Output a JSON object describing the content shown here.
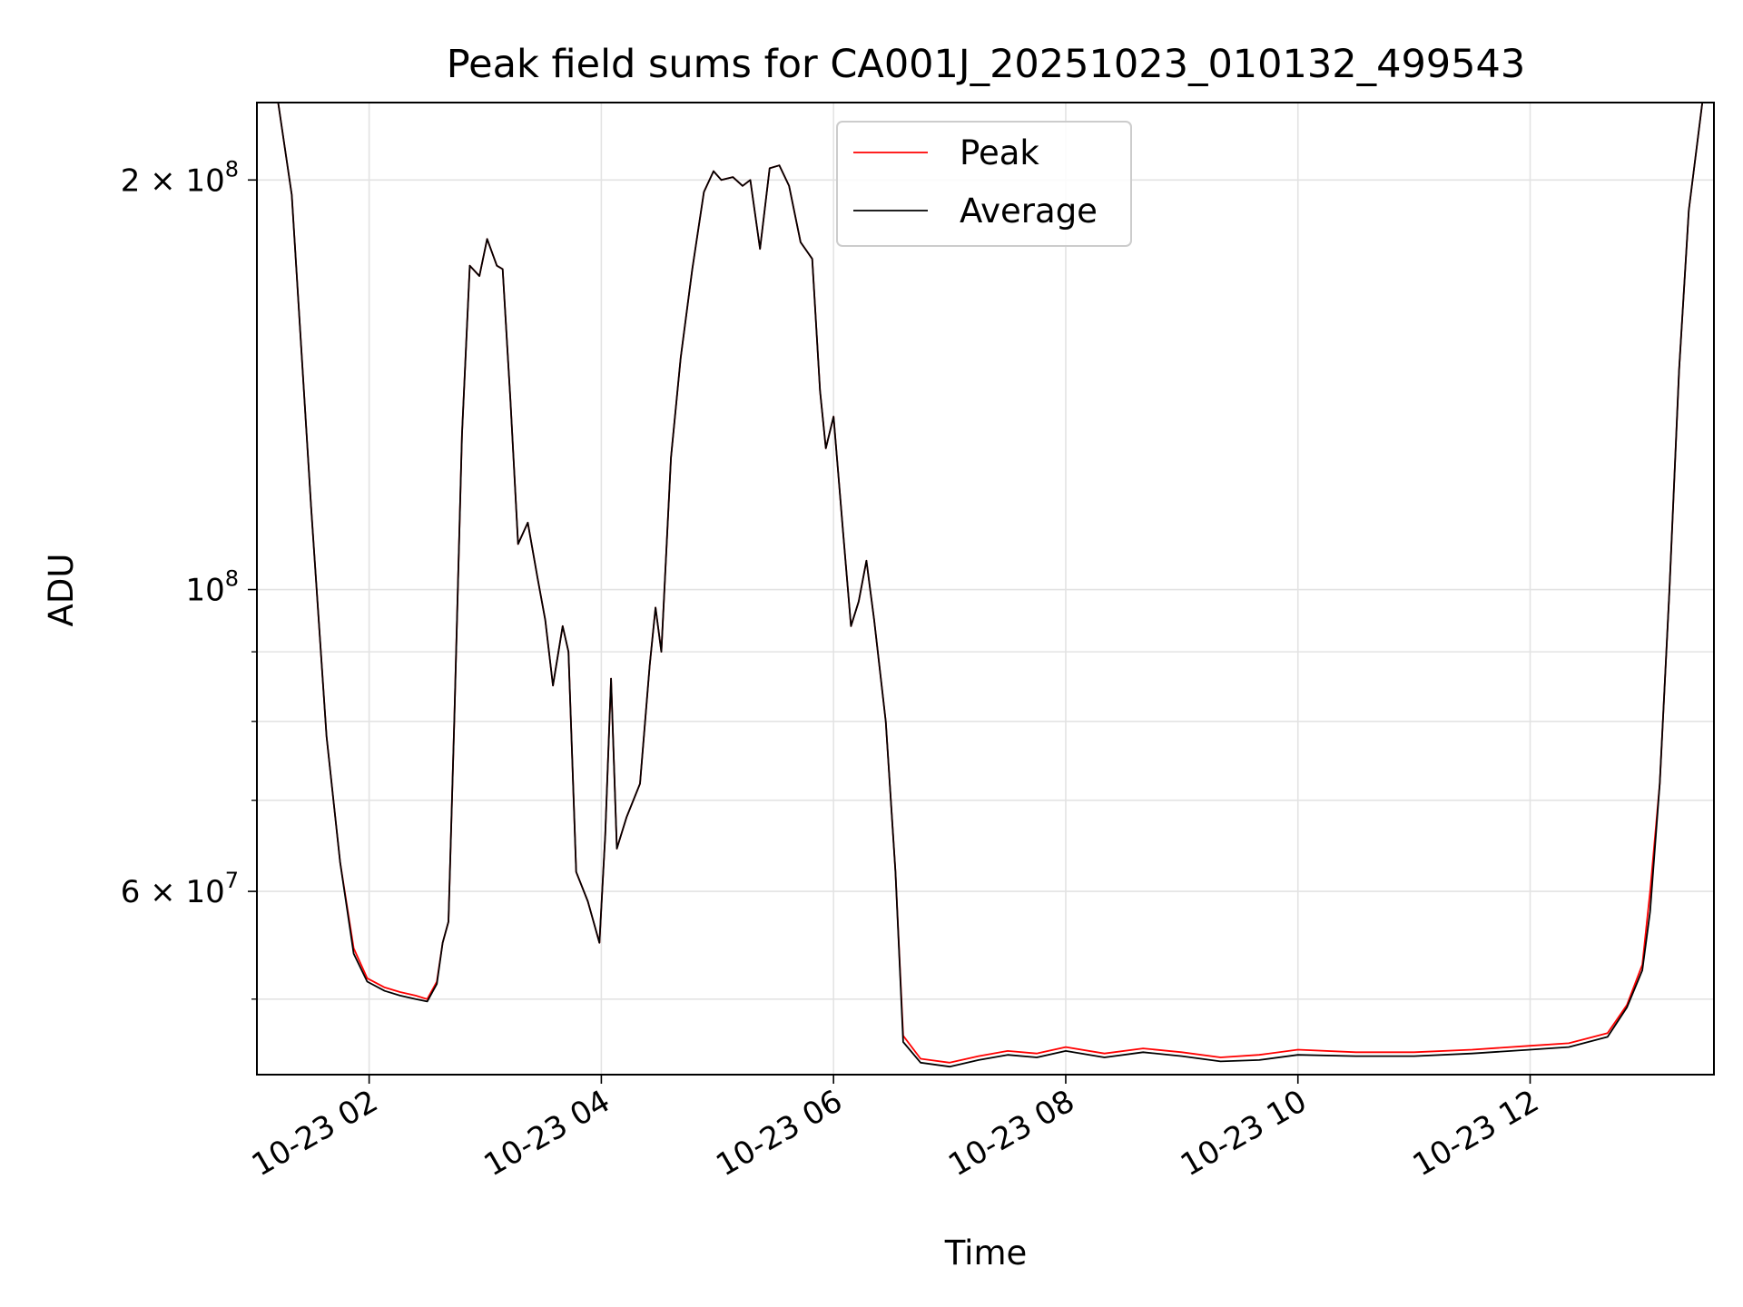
{
  "chart_data": {
    "type": "line",
    "title": "Peak field sums for CA001J_20251023_010132_499543",
    "xlabel": "Time",
    "ylabel": "ADU",
    "yscale": "log",
    "ylim": [
      44000000,
      228000000
    ],
    "xlim": [
      "2025-10-23T01:02:00",
      "2025-10-23T13:35:00"
    ],
    "grid": true,
    "legend": "upper center",
    "x_ticks": [
      {
        "x": "2025-10-23T02:00",
        "label": "10-23 02"
      },
      {
        "x": "2025-10-23T04:00",
        "label": "10-23 04"
      },
      {
        "x": "2025-10-23T06:00",
        "label": "10-23 06"
      },
      {
        "x": "2025-10-23T08:00",
        "label": "10-23 08"
      },
      {
        "x": "2025-10-23T10:00",
        "label": "10-23 10"
      },
      {
        "x": "2025-10-23T12:00",
        "label": "10-23 12"
      }
    ],
    "y_ticks": [
      {
        "value": 60000000,
        "base": "6 × 10",
        "exp": "7"
      },
      {
        "value": 100000000,
        "base": "10",
        "exp": "8"
      },
      {
        "value": 200000000,
        "base": "2 × 10",
        "exp": "8"
      }
    ],
    "y_minor_ticks": [
      50000000,
      70000000,
      80000000,
      90000000
    ],
    "series": [
      {
        "name": "Peak",
        "color": "#ff0000",
        "points": [
          [
            "2025-10-23T01:13",
            228000000
          ],
          [
            "2025-10-23T01:20",
            195000000
          ],
          [
            "2025-10-23T01:30",
            115000000
          ],
          [
            "2025-10-23T01:38",
            78000000
          ],
          [
            "2025-10-23T01:45",
            63000000
          ],
          [
            "2025-10-23T01:52",
            54500000
          ],
          [
            "2025-10-23T01:59",
            51800000
          ],
          [
            "2025-10-23T02:08",
            51000000
          ],
          [
            "2025-10-23T02:16",
            50600000
          ],
          [
            "2025-10-23T02:24",
            50300000
          ],
          [
            "2025-10-23T02:30",
            50000000
          ],
          [
            "2025-10-23T02:35",
            51500000
          ],
          [
            "2025-10-23T02:38",
            55000000
          ],
          [
            "2025-10-23T02:41",
            57000000
          ],
          [
            "2025-10-23T02:44",
            80000000
          ],
          [
            "2025-10-23T02:48",
            130000000
          ],
          [
            "2025-10-23T02:52",
            173000000
          ],
          [
            "2025-10-23T02:57",
            170000000
          ],
          [
            "2025-10-23T03:01",
            181000000
          ],
          [
            "2025-10-23T03:06",
            173000000
          ],
          [
            "2025-10-23T03:09",
            172000000
          ],
          [
            "2025-10-23T03:13",
            138000000
          ],
          [
            "2025-10-23T03:17",
            108000000
          ],
          [
            "2025-10-23T03:22",
            112000000
          ],
          [
            "2025-10-23T03:27",
            102000000
          ],
          [
            "2025-10-23T03:31",
            95000000
          ],
          [
            "2025-10-23T03:35",
            85000000
          ],
          [
            "2025-10-23T03:40",
            94000000
          ],
          [
            "2025-10-23T03:43",
            90000000
          ],
          [
            "2025-10-23T03:47",
            62000000
          ],
          [
            "2025-10-23T03:53",
            59000000
          ],
          [
            "2025-10-23T03:59",
            55000000
          ],
          [
            "2025-10-23T04:02",
            66000000
          ],
          [
            "2025-10-23T04:05",
            86000000
          ],
          [
            "2025-10-23T04:08",
            64500000
          ],
          [
            "2025-10-23T04:13",
            68000000
          ],
          [
            "2025-10-23T04:20",
            72000000
          ],
          [
            "2025-10-23T04:25",
            88000000
          ],
          [
            "2025-10-23T04:28",
            97000000
          ],
          [
            "2025-10-23T04:31",
            90000000
          ],
          [
            "2025-10-23T04:36",
            125000000
          ],
          [
            "2025-10-23T04:41",
            148000000
          ],
          [
            "2025-10-23T04:47",
            172000000
          ],
          [
            "2025-10-23T04:53",
            196000000
          ],
          [
            "2025-10-23T04:58",
            203000000
          ],
          [
            "2025-10-23T05:02",
            200000000
          ],
          [
            "2025-10-23T05:08",
            201000000
          ],
          [
            "2025-10-23T05:13",
            198000000
          ],
          [
            "2025-10-23T05:17",
            200000000
          ],
          [
            "2025-10-23T05:22",
            178000000
          ],
          [
            "2025-10-23T05:27",
            204000000
          ],
          [
            "2025-10-23T05:32",
            205000000
          ],
          [
            "2025-10-23T05:37",
            198000000
          ],
          [
            "2025-10-23T05:43",
            180000000
          ],
          [
            "2025-10-23T05:49",
            175000000
          ],
          [
            "2025-10-23T05:53",
            140000000
          ],
          [
            "2025-10-23T05:56",
            127000000
          ],
          [
            "2025-10-23T06:00",
            134000000
          ],
          [
            "2025-10-23T06:05",
            110000000
          ],
          [
            "2025-10-23T06:09",
            94000000
          ],
          [
            "2025-10-23T06:13",
            98000000
          ],
          [
            "2025-10-23T06:17",
            105000000
          ],
          [
            "2025-10-23T06:21",
            95000000
          ],
          [
            "2025-10-23T06:27",
            80000000
          ],
          [
            "2025-10-23T06:32",
            62000000
          ],
          [
            "2025-10-23T06:36",
            47000000
          ],
          [
            "2025-10-23T06:45",
            45200000
          ],
          [
            "2025-10-23T07:00",
            44900000
          ],
          [
            "2025-10-23T07:15",
            45400000
          ],
          [
            "2025-10-23T07:30",
            45800000
          ],
          [
            "2025-10-23T07:45",
            45600000
          ],
          [
            "2025-10-23T08:00",
            46100000
          ],
          [
            "2025-10-23T08:20",
            45600000
          ],
          [
            "2025-10-23T08:40",
            46000000
          ],
          [
            "2025-10-23T09:00",
            45700000
          ],
          [
            "2025-10-23T09:20",
            45300000
          ],
          [
            "2025-10-23T09:40",
            45500000
          ],
          [
            "2025-10-23T10:00",
            45900000
          ],
          [
            "2025-10-23T10:30",
            45700000
          ],
          [
            "2025-10-23T11:00",
            45700000
          ],
          [
            "2025-10-23T11:30",
            45900000
          ],
          [
            "2025-10-23T12:00",
            46200000
          ],
          [
            "2025-10-23T12:20",
            46400000
          ],
          [
            "2025-10-23T12:40",
            47200000
          ],
          [
            "2025-10-23T12:50",
            49500000
          ],
          [
            "2025-10-23T12:58",
            53000000
          ],
          [
            "2025-10-23T13:02",
            60000000
          ],
          [
            "2025-10-23T13:07",
            72000000
          ],
          [
            "2025-10-23T13:12",
            100000000
          ],
          [
            "2025-10-23T13:17",
            145000000
          ],
          [
            "2025-10-23T13:22",
            190000000
          ],
          [
            "2025-10-23T13:29",
            228000000
          ]
        ]
      },
      {
        "name": "Average",
        "color": "#000000",
        "points": [
          [
            "2025-10-23T01:13",
            228000000
          ],
          [
            "2025-10-23T01:20",
            195000000
          ],
          [
            "2025-10-23T01:30",
            115000000
          ],
          [
            "2025-10-23T01:38",
            78000000
          ],
          [
            "2025-10-23T01:45",
            63000000
          ],
          [
            "2025-10-23T01:52",
            54000000
          ],
          [
            "2025-10-23T01:59",
            51500000
          ],
          [
            "2025-10-23T02:08",
            50700000
          ],
          [
            "2025-10-23T02:16",
            50300000
          ],
          [
            "2025-10-23T02:24",
            50000000
          ],
          [
            "2025-10-23T02:30",
            49800000
          ],
          [
            "2025-10-23T02:35",
            51300000
          ],
          [
            "2025-10-23T02:38",
            55000000
          ],
          [
            "2025-10-23T02:41",
            57000000
          ],
          [
            "2025-10-23T02:44",
            80000000
          ],
          [
            "2025-10-23T02:48",
            130000000
          ],
          [
            "2025-10-23T02:52",
            173000000
          ],
          [
            "2025-10-23T02:57",
            170000000
          ],
          [
            "2025-10-23T03:01",
            181000000
          ],
          [
            "2025-10-23T03:06",
            173000000
          ],
          [
            "2025-10-23T03:09",
            172000000
          ],
          [
            "2025-10-23T03:13",
            138000000
          ],
          [
            "2025-10-23T03:17",
            108000000
          ],
          [
            "2025-10-23T03:22",
            112000000
          ],
          [
            "2025-10-23T03:27",
            102000000
          ],
          [
            "2025-10-23T03:31",
            95000000
          ],
          [
            "2025-10-23T03:35",
            85000000
          ],
          [
            "2025-10-23T03:40",
            94000000
          ],
          [
            "2025-10-23T03:43",
            90000000
          ],
          [
            "2025-10-23T03:47",
            62000000
          ],
          [
            "2025-10-23T03:53",
            59000000
          ],
          [
            "2025-10-23T03:59",
            55000000
          ],
          [
            "2025-10-23T04:02",
            66000000
          ],
          [
            "2025-10-23T04:05",
            86000000
          ],
          [
            "2025-10-23T04:08",
            64500000
          ],
          [
            "2025-10-23T04:13",
            68000000
          ],
          [
            "2025-10-23T04:20",
            72000000
          ],
          [
            "2025-10-23T04:25",
            88000000
          ],
          [
            "2025-10-23T04:28",
            97000000
          ],
          [
            "2025-10-23T04:31",
            90000000
          ],
          [
            "2025-10-23T04:36",
            125000000
          ],
          [
            "2025-10-23T04:41",
            148000000
          ],
          [
            "2025-10-23T04:47",
            172000000
          ],
          [
            "2025-10-23T04:53",
            196000000
          ],
          [
            "2025-10-23T04:58",
            203000000
          ],
          [
            "2025-10-23T05:02",
            200000000
          ],
          [
            "2025-10-23T05:08",
            201000000
          ],
          [
            "2025-10-23T05:13",
            198000000
          ],
          [
            "2025-10-23T05:17",
            200000000
          ],
          [
            "2025-10-23T05:22",
            178000000
          ],
          [
            "2025-10-23T05:27",
            204000000
          ],
          [
            "2025-10-23T05:32",
            205000000
          ],
          [
            "2025-10-23T05:37",
            198000000
          ],
          [
            "2025-10-23T05:43",
            180000000
          ],
          [
            "2025-10-23T05:49",
            175000000
          ],
          [
            "2025-10-23T05:53",
            140000000
          ],
          [
            "2025-10-23T05:56",
            127000000
          ],
          [
            "2025-10-23T06:00",
            134000000
          ],
          [
            "2025-10-23T06:05",
            110000000
          ],
          [
            "2025-10-23T06:09",
            94000000
          ],
          [
            "2025-10-23T06:13",
            98000000
          ],
          [
            "2025-10-23T06:17",
            105000000
          ],
          [
            "2025-10-23T06:21",
            95000000
          ],
          [
            "2025-10-23T06:27",
            80000000
          ],
          [
            "2025-10-23T06:32",
            62000000
          ],
          [
            "2025-10-23T06:36",
            46500000
          ],
          [
            "2025-10-23T06:45",
            44900000
          ],
          [
            "2025-10-23T07:00",
            44600000
          ],
          [
            "2025-10-23T07:15",
            45100000
          ],
          [
            "2025-10-23T07:30",
            45500000
          ],
          [
            "2025-10-23T07:45",
            45300000
          ],
          [
            "2025-10-23T08:00",
            45800000
          ],
          [
            "2025-10-23T08:20",
            45300000
          ],
          [
            "2025-10-23T08:40",
            45700000
          ],
          [
            "2025-10-23T09:00",
            45400000
          ],
          [
            "2025-10-23T09:20",
            45000000
          ],
          [
            "2025-10-23T09:40",
            45100000
          ],
          [
            "2025-10-23T10:00",
            45500000
          ],
          [
            "2025-10-23T10:30",
            45400000
          ],
          [
            "2025-10-23T11:00",
            45400000
          ],
          [
            "2025-10-23T11:30",
            45600000
          ],
          [
            "2025-10-23T12:00",
            45900000
          ],
          [
            "2025-10-23T12:20",
            46100000
          ],
          [
            "2025-10-23T12:40",
            46900000
          ],
          [
            "2025-10-23T12:50",
            49300000
          ],
          [
            "2025-10-23T12:58",
            52500000
          ],
          [
            "2025-10-23T13:02",
            58000000
          ],
          [
            "2025-10-23T13:07",
            72000000
          ],
          [
            "2025-10-23T13:12",
            100000000
          ],
          [
            "2025-10-23T13:17",
            145000000
          ],
          [
            "2025-10-23T13:22",
            190000000
          ],
          [
            "2025-10-23T13:29",
            228000000
          ]
        ]
      }
    ]
  }
}
